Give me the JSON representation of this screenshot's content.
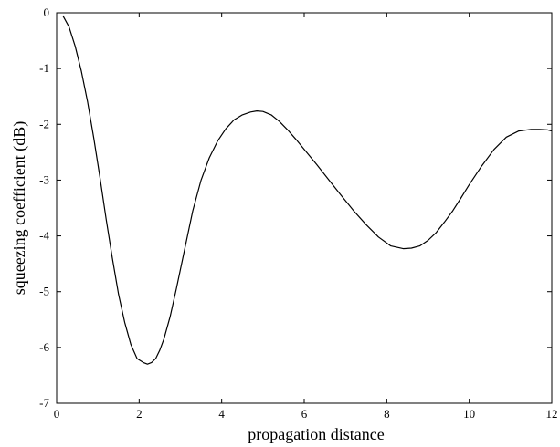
{
  "chart_data": {
    "type": "line",
    "title": "",
    "xlabel": "propagation distance",
    "ylabel": "squeezing coefficient (dB)",
    "xlim": [
      0,
      12
    ],
    "ylim": [
      -7,
      0
    ],
    "grid": false,
    "legend": "none",
    "colors": {
      "line": "#000000",
      "axes": "#000000",
      "background": "#ffffff"
    },
    "x_ticks": [
      {
        "value": 0,
        "label": "0"
      },
      {
        "value": 2,
        "label": "2"
      },
      {
        "value": 4,
        "label": "4"
      },
      {
        "value": 6,
        "label": "6"
      },
      {
        "value": 8,
        "label": "8"
      },
      {
        "value": 10,
        "label": "10"
      },
      {
        "value": 12,
        "label": "12"
      }
    ],
    "y_ticks": [
      {
        "value": 0,
        "label": "0"
      },
      {
        "value": -1,
        "label": "-1"
      },
      {
        "value": -2,
        "label": "-2"
      },
      {
        "value": -3,
        "label": "-3"
      },
      {
        "value": -4,
        "label": "-4"
      },
      {
        "value": -5,
        "label": "-5"
      },
      {
        "value": -6,
        "label": "-6"
      },
      {
        "value": -7,
        "label": "-7"
      }
    ],
    "series": [
      {
        "x": [
          0.15,
          0.3,
          0.45,
          0.6,
          0.75,
          0.9,
          1.05,
          1.2,
          1.35,
          1.5,
          1.65,
          1.8,
          1.95,
          2.1,
          2.2,
          2.3,
          2.4,
          2.5,
          2.6,
          2.75,
          2.9,
          3.1,
          3.3,
          3.5,
          3.7,
          3.9,
          4.1,
          4.3,
          4.5,
          4.7,
          4.85,
          5.0,
          5.2,
          5.4,
          5.6,
          5.8,
          6.0,
          6.3,
          6.6,
          6.9,
          7.2,
          7.5,
          7.8,
          8.1,
          8.4,
          8.6,
          8.8,
          9.0,
          9.2,
          9.4,
          9.6,
          9.8,
          10.0,
          10.3,
          10.6,
          10.9,
          11.2,
          11.5,
          11.7,
          11.9,
          12.0
        ],
        "y": [
          -0.05,
          -0.25,
          -0.6,
          -1.05,
          -1.6,
          -2.25,
          -2.95,
          -3.7,
          -4.4,
          -5.05,
          -5.55,
          -5.95,
          -6.2,
          -6.27,
          -6.3,
          -6.27,
          -6.2,
          -6.05,
          -5.85,
          -5.45,
          -4.95,
          -4.25,
          -3.55,
          -3.0,
          -2.6,
          -2.3,
          -2.08,
          -1.92,
          -1.83,
          -1.78,
          -1.76,
          -1.77,
          -1.83,
          -1.95,
          -2.1,
          -2.27,
          -2.45,
          -2.72,
          -3.0,
          -3.28,
          -3.55,
          -3.8,
          -4.02,
          -4.18,
          -4.23,
          -4.22,
          -4.18,
          -4.08,
          -3.94,
          -3.75,
          -3.55,
          -3.32,
          -3.08,
          -2.75,
          -2.45,
          -2.23,
          -2.12,
          -2.09,
          -2.09,
          -2.1,
          -2.12
        ]
      }
    ]
  }
}
